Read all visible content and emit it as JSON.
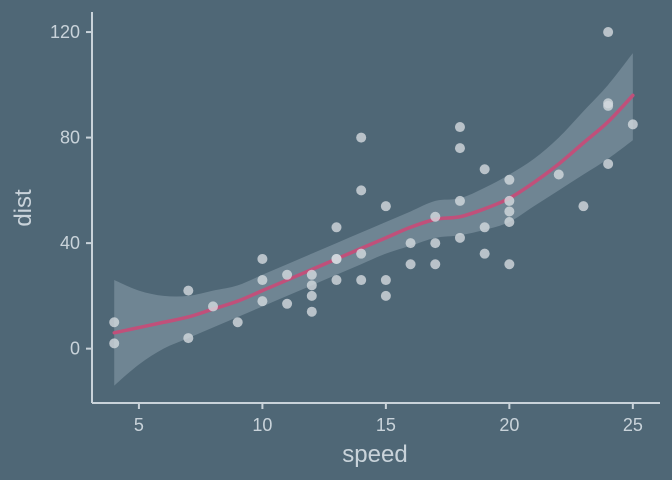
{
  "chart_data": {
    "type": "scatter",
    "title": "",
    "xlabel": "speed",
    "ylabel": "dist",
    "xlim": [
      3.1,
      26.1
    ],
    "ylim": [
      -20.6,
      127.6
    ],
    "xticks": [
      5,
      10,
      15,
      20,
      25
    ],
    "yticks": [
      0,
      40,
      80,
      120
    ],
    "grid": false,
    "colors": {
      "background": "#4f6776",
      "points": "#d3d9df",
      "smooth_line": "#c0507a",
      "ribbon": "#8a9eac",
      "axis": "#c9d3da"
    },
    "points": [
      {
        "x": 4,
        "y": 2
      },
      {
        "x": 4,
        "y": 10
      },
      {
        "x": 7,
        "y": 4
      },
      {
        "x": 7,
        "y": 22
      },
      {
        "x": 8,
        "y": 16
      },
      {
        "x": 9,
        "y": 10
      },
      {
        "x": 10,
        "y": 18
      },
      {
        "x": 10,
        "y": 26
      },
      {
        "x": 10,
        "y": 34
      },
      {
        "x": 11,
        "y": 17
      },
      {
        "x": 11,
        "y": 28
      },
      {
        "x": 12,
        "y": 14
      },
      {
        "x": 12,
        "y": 20
      },
      {
        "x": 12,
        "y": 24
      },
      {
        "x": 12,
        "y": 28
      },
      {
        "x": 13,
        "y": 26
      },
      {
        "x": 13,
        "y": 34
      },
      {
        "x": 13,
        "y": 34
      },
      {
        "x": 13,
        "y": 46
      },
      {
        "x": 14,
        "y": 26
      },
      {
        "x": 14,
        "y": 36
      },
      {
        "x": 14,
        "y": 60
      },
      {
        "x": 14,
        "y": 80
      },
      {
        "x": 15,
        "y": 20
      },
      {
        "x": 15,
        "y": 26
      },
      {
        "x": 15,
        "y": 54
      },
      {
        "x": 16,
        "y": 32
      },
      {
        "x": 16,
        "y": 40
      },
      {
        "x": 17,
        "y": 32
      },
      {
        "x": 17,
        "y": 40
      },
      {
        "x": 17,
        "y": 50
      },
      {
        "x": 18,
        "y": 42
      },
      {
        "x": 18,
        "y": 56
      },
      {
        "x": 18,
        "y": 76
      },
      {
        "x": 18,
        "y": 84
      },
      {
        "x": 19,
        "y": 36
      },
      {
        "x": 19,
        "y": 46
      },
      {
        "x": 19,
        "y": 68
      },
      {
        "x": 20,
        "y": 32
      },
      {
        "x": 20,
        "y": 48
      },
      {
        "x": 20,
        "y": 52
      },
      {
        "x": 20,
        "y": 56
      },
      {
        "x": 20,
        "y": 64
      },
      {
        "x": 22,
        "y": 66
      },
      {
        "x": 23,
        "y": 54
      },
      {
        "x": 24,
        "y": 70
      },
      {
        "x": 24,
        "y": 92
      },
      {
        "x": 24,
        "y": 93
      },
      {
        "x": 24,
        "y": 120
      },
      {
        "x": 25,
        "y": 85
      }
    ],
    "smooth": {
      "x": [
        4,
        5,
        6,
        7,
        8,
        9,
        10,
        11,
        12,
        13,
        14,
        15,
        16,
        17,
        18,
        19,
        20,
        21,
        22,
        23,
        24,
        25
      ],
      "y": [
        6,
        8,
        10,
        12,
        15,
        18,
        22,
        26,
        30,
        34,
        38,
        42,
        46,
        49,
        50,
        53,
        57,
        63,
        70,
        78,
        86,
        96
      ],
      "lower": [
        -14,
        -6,
        0,
        4,
        8,
        12,
        16,
        20,
        24,
        28,
        32,
        36,
        39,
        42,
        43,
        45,
        48,
        54,
        60,
        66,
        72,
        79
      ],
      "upper": [
        26,
        22,
        20,
        20,
        22,
        24,
        28,
        32,
        36,
        40,
        44,
        48,
        52,
        56,
        57,
        61,
        66,
        72,
        80,
        90,
        100,
        112
      ]
    }
  }
}
